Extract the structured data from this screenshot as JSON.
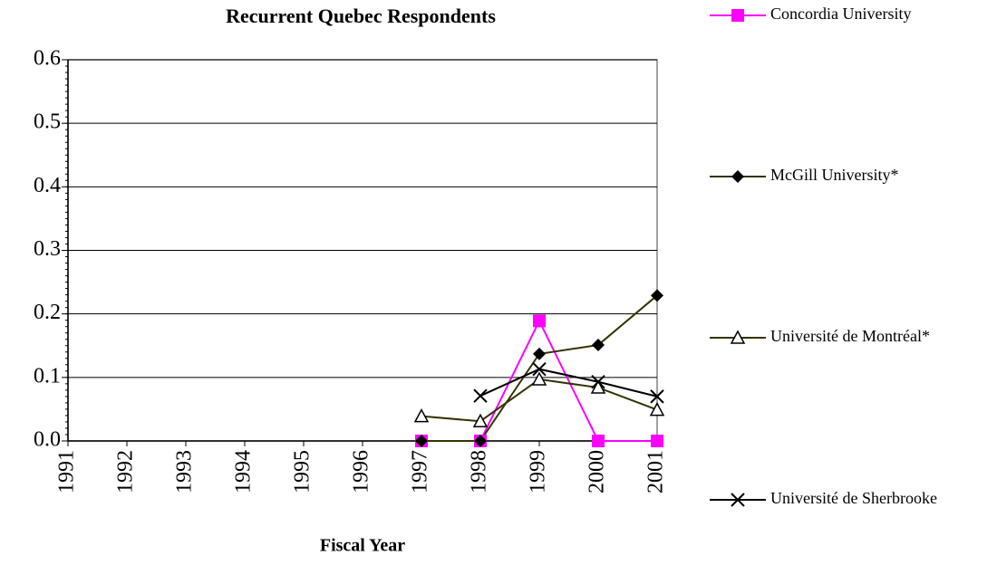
{
  "chart_data": {
    "type": "line",
    "title": "Recurrent Quebec Respondents",
    "x_label": "Fiscal Year",
    "categories": [
      "1991",
      "1992",
      "1993",
      "1994",
      "1995",
      "1996",
      "1997",
      "1998",
      "1999",
      "2000",
      "2001"
    ],
    "series": [
      {
        "name": "Concordia University",
        "color": "#ff00ff",
        "marker": "square",
        "values": [
          null,
          null,
          null,
          null,
          null,
          null,
          0,
          0,
          0.189,
          0,
          0
        ]
      },
      {
        "name": "McGill University*",
        "color": "#333300",
        "marker": "diamond",
        "values": [
          null,
          null,
          null,
          null,
          null,
          null,
          0,
          0,
          0.137,
          0.151,
          0.229
        ]
      },
      {
        "name": "Université de Montréal*",
        "color": "#333300",
        "marker": "triangle",
        "values": [
          null,
          null,
          null,
          null,
          null,
          null,
          0.039,
          0.031,
          0.097,
          0.084,
          0.049
        ]
      },
      {
        "name": "Université de Sherbrooke",
        "color": "#000000",
        "marker": "x",
        "values": [
          null,
          null,
          null,
          null,
          null,
          null,
          null,
          0.071,
          0.113,
          0.093,
          0.07
        ]
      }
    ],
    "ylim": [
      0,
      0.6
    ],
    "yticks": [
      {
        "value": 0,
        "label": "0.0"
      },
      0.1,
      0.2,
      0.3,
      0.4,
      0.5,
      0.6
    ],
    "grid": true,
    "legend": "right"
  }
}
